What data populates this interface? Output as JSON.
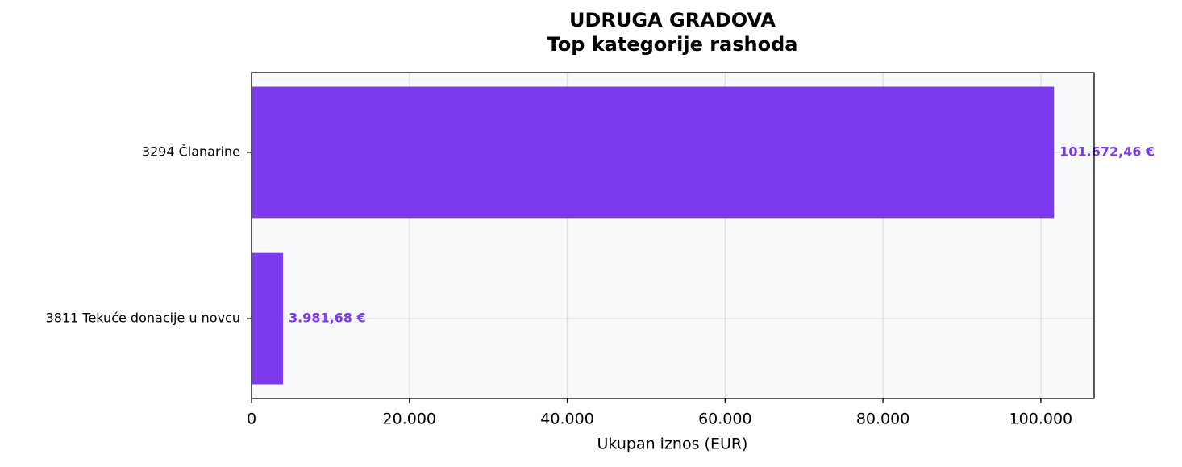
{
  "chart_data": {
    "type": "hbar",
    "title": [
      "UDRUGA GRADOVA",
      "Top kategorije rashoda"
    ],
    "categories": [
      "3294 Članarine",
      "3811 Tekuće donacije u novcu"
    ],
    "values": [
      101672.46,
      3981.68
    ],
    "value_labels": [
      "101.672,46 €",
      "3.981,68 €"
    ],
    "color": "#7c3aed",
    "x_label": "Ukupan iznos (EUR)",
    "xlim": [
      0,
      106756
    ],
    "xticks": [
      0,
      {
        "value": 20000,
        "label": "20.000"
      },
      {
        "value": 40000,
        "label": "40.000"
      },
      {
        "value": 60000,
        "label": "60.000"
      },
      {
        "value": 80000,
        "label": "80.000"
      },
      {
        "value": 100000,
        "label": "100.000"
      }
    ],
    "grid": true
  }
}
